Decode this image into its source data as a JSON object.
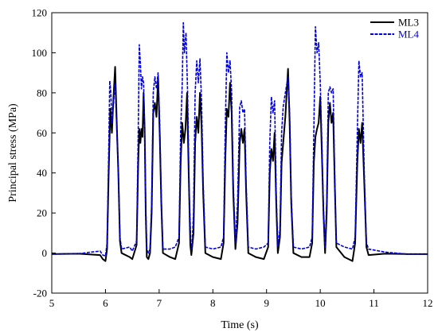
{
  "chart_data": {
    "type": "line",
    "xlabel": "Time (s)",
    "ylabel": "Principal stress (MPa)",
    "xlim": [
      5,
      12
    ],
    "ylim": [
      -20,
      120
    ],
    "xticks": [
      5,
      6,
      7,
      8,
      9,
      10,
      11,
      12
    ],
    "yticks": [
      -20,
      0,
      20,
      40,
      60,
      80,
      100,
      120
    ],
    "grid": false,
    "legend_position": "top-right",
    "series": [
      {
        "name": "ML3",
        "color": "#000000",
        "style": "solid",
        "points": [
          [
            5.0,
            -0.5
          ],
          [
            5.5,
            -0.3
          ],
          [
            5.9,
            -1
          ],
          [
            5.95,
            -3
          ],
          [
            6.0,
            -4
          ],
          [
            6.03,
            2
          ],
          [
            6.06,
            40
          ],
          [
            6.09,
            72
          ],
          [
            6.12,
            60
          ],
          [
            6.15,
            78
          ],
          [
            6.18,
            93
          ],
          [
            6.21,
            65
          ],
          [
            6.24,
            40
          ],
          [
            6.27,
            6
          ],
          [
            6.3,
            0
          ],
          [
            6.45,
            -2
          ],
          [
            6.5,
            -3
          ],
          [
            6.58,
            4
          ],
          [
            6.61,
            45
          ],
          [
            6.63,
            62
          ],
          [
            6.65,
            55
          ],
          [
            6.67,
            62
          ],
          [
            6.69,
            58
          ],
          [
            6.71,
            80
          ],
          [
            6.73,
            62
          ],
          [
            6.75,
            20
          ],
          [
            6.77,
            -2
          ],
          [
            6.8,
            -3
          ],
          [
            6.83,
            0
          ],
          [
            6.86,
            20
          ],
          [
            6.89,
            70
          ],
          [
            6.92,
            75
          ],
          [
            6.95,
            68
          ],
          [
            6.98,
            88
          ],
          [
            7.01,
            60
          ],
          [
            7.04,
            25
          ],
          [
            7.07,
            0
          ],
          [
            7.2,
            -2
          ],
          [
            7.3,
            -3
          ],
          [
            7.37,
            5
          ],
          [
            7.4,
            45
          ],
          [
            7.43,
            65
          ],
          [
            7.46,
            55
          ],
          [
            7.49,
            62
          ],
          [
            7.52,
            80
          ],
          [
            7.55,
            40
          ],
          [
            7.58,
            4
          ],
          [
            7.6,
            -1
          ],
          [
            7.64,
            10
          ],
          [
            7.67,
            55
          ],
          [
            7.7,
            68
          ],
          [
            7.73,
            60
          ],
          [
            7.76,
            80
          ],
          [
            7.79,
            63
          ],
          [
            7.82,
            30
          ],
          [
            7.86,
            0
          ],
          [
            8.0,
            -2
          ],
          [
            8.15,
            -3
          ],
          [
            8.2,
            5
          ],
          [
            8.23,
            45
          ],
          [
            8.26,
            72
          ],
          [
            8.29,
            68
          ],
          [
            8.32,
            85
          ],
          [
            8.35,
            70
          ],
          [
            8.38,
            30
          ],
          [
            8.42,
            2
          ],
          [
            8.46,
            15
          ],
          [
            8.5,
            55
          ],
          [
            8.53,
            62
          ],
          [
            8.56,
            55
          ],
          [
            8.59,
            62
          ],
          [
            8.62,
            30
          ],
          [
            8.66,
            0
          ],
          [
            8.8,
            -2
          ],
          [
            8.95,
            -3
          ],
          [
            9.03,
            3
          ],
          [
            9.06,
            40
          ],
          [
            9.09,
            52
          ],
          [
            9.12,
            46
          ],
          [
            9.15,
            60
          ],
          [
            9.18,
            25
          ],
          [
            9.21,
            0
          ],
          [
            9.25,
            8
          ],
          [
            9.28,
            45
          ],
          [
            9.31,
            55
          ],
          [
            9.35,
            68
          ],
          [
            9.4,
            92
          ],
          [
            9.43,
            65
          ],
          [
            9.46,
            25
          ],
          [
            9.5,
            0
          ],
          [
            9.65,
            -2
          ],
          [
            9.8,
            -2
          ],
          [
            9.85,
            5
          ],
          [
            9.88,
            45
          ],
          [
            9.91,
            58
          ],
          [
            9.94,
            62
          ],
          [
            9.97,
            65
          ],
          [
            10.0,
            78
          ],
          [
            10.03,
            50
          ],
          [
            10.06,
            20
          ],
          [
            10.09,
            0
          ],
          [
            10.12,
            20
          ],
          [
            10.15,
            65
          ],
          [
            10.18,
            75
          ],
          [
            10.21,
            65
          ],
          [
            10.24,
            70
          ],
          [
            10.27,
            35
          ],
          [
            10.3,
            3
          ],
          [
            10.45,
            -2
          ],
          [
            10.6,
            -4
          ],
          [
            10.65,
            5
          ],
          [
            10.69,
            45
          ],
          [
            10.72,
            62
          ],
          [
            10.75,
            55
          ],
          [
            10.78,
            65
          ],
          [
            10.82,
            35
          ],
          [
            10.86,
            3
          ],
          [
            10.9,
            -1
          ],
          [
            11.2,
            -0.3
          ],
          [
            11.6,
            -0.5
          ],
          [
            12.0,
            -0.5
          ]
        ]
      },
      {
        "name": "ML4",
        "color": "#0000dd",
        "style": "dashed",
        "points": [
          [
            5.0,
            -0.5
          ],
          [
            5.5,
            -0.3
          ],
          [
            5.9,
            1
          ],
          [
            5.95,
            -1
          ],
          [
            6.0,
            -1.5
          ],
          [
            6.03,
            5
          ],
          [
            6.06,
            50
          ],
          [
            6.08,
            86
          ],
          [
            6.1,
            80
          ],
          [
            6.12,
            65
          ],
          [
            6.15,
            75
          ],
          [
            6.18,
            85
          ],
          [
            6.21,
            62
          ],
          [
            6.24,
            40
          ],
          [
            6.27,
            8
          ],
          [
            6.3,
            2
          ],
          [
            6.45,
            3
          ],
          [
            6.5,
            1
          ],
          [
            6.58,
            6
          ],
          [
            6.61,
            60
          ],
          [
            6.63,
            104
          ],
          [
            6.65,
            95
          ],
          [
            6.67,
            82
          ],
          [
            6.69,
            88
          ],
          [
            6.71,
            85
          ],
          [
            6.73,
            60
          ],
          [
            6.75,
            25
          ],
          [
            6.77,
            2
          ],
          [
            6.8,
            0
          ],
          [
            6.83,
            2
          ],
          [
            6.86,
            25
          ],
          [
            6.89,
            80
          ],
          [
            6.92,
            88
          ],
          [
            6.95,
            82
          ],
          [
            6.98,
            90
          ],
          [
            7.01,
            65
          ],
          [
            7.04,
            28
          ],
          [
            7.07,
            2
          ],
          [
            7.2,
            2
          ],
          [
            7.3,
            3
          ],
          [
            7.37,
            8
          ],
          [
            7.4,
            60
          ],
          [
            7.43,
            85
          ],
          [
            7.45,
            115
          ],
          [
            7.47,
            100
          ],
          [
            7.5,
            110
          ],
          [
            7.53,
            80
          ],
          [
            7.56,
            30
          ],
          [
            7.59,
            5
          ],
          [
            7.61,
            2
          ],
          [
            7.64,
            20
          ],
          [
            7.67,
            80
          ],
          [
            7.7,
            96
          ],
          [
            7.73,
            85
          ],
          [
            7.76,
            97
          ],
          [
            7.79,
            75
          ],
          [
            7.82,
            35
          ],
          [
            7.86,
            3
          ],
          [
            8.0,
            2
          ],
          [
            8.15,
            3
          ],
          [
            8.2,
            8
          ],
          [
            8.23,
            60
          ],
          [
            8.26,
            100
          ],
          [
            8.29,
            90
          ],
          [
            8.32,
            96
          ],
          [
            8.35,
            80
          ],
          [
            8.38,
            35
          ],
          [
            8.42,
            5
          ],
          [
            8.46,
            25
          ],
          [
            8.5,
            73
          ],
          [
            8.53,
            76
          ],
          [
            8.56,
            70
          ],
          [
            8.59,
            72
          ],
          [
            8.62,
            35
          ],
          [
            8.66,
            3
          ],
          [
            8.8,
            2
          ],
          [
            8.95,
            3
          ],
          [
            9.03,
            5
          ],
          [
            9.06,
            55
          ],
          [
            9.09,
            78
          ],
          [
            9.12,
            70
          ],
          [
            9.15,
            76
          ],
          [
            9.18,
            30
          ],
          [
            9.21,
            3
          ],
          [
            9.25,
            12
          ],
          [
            9.28,
            60
          ],
          [
            9.31,
            73
          ],
          [
            9.35,
            80
          ],
          [
            9.4,
            88
          ],
          [
            9.43,
            70
          ],
          [
            9.46,
            28
          ],
          [
            9.5,
            3
          ],
          [
            9.65,
            2
          ],
          [
            9.8,
            3
          ],
          [
            9.85,
            8
          ],
          [
            9.88,
            60
          ],
          [
            9.91,
            113
          ],
          [
            9.94,
            100
          ],
          [
            9.97,
            105
          ],
          [
            10.0,
            85
          ],
          [
            10.03,
            55
          ],
          [
            10.06,
            22
          ],
          [
            10.09,
            3
          ],
          [
            10.12,
            25
          ],
          [
            10.15,
            80
          ],
          [
            10.18,
            83
          ],
          [
            10.21,
            80
          ],
          [
            10.24,
            82
          ],
          [
            10.27,
            38
          ],
          [
            10.3,
            5
          ],
          [
            10.45,
            3
          ],
          [
            10.6,
            2
          ],
          [
            10.65,
            8
          ],
          [
            10.69,
            60
          ],
          [
            10.72,
            96
          ],
          [
            10.75,
            88
          ],
          [
            10.78,
            90
          ],
          [
            10.82,
            40
          ],
          [
            10.86,
            5
          ],
          [
            10.9,
            2
          ],
          [
            11.2,
            0.5
          ],
          [
            11.6,
            -0.5
          ],
          [
            12.0,
            -0.5
          ]
        ]
      }
    ]
  }
}
